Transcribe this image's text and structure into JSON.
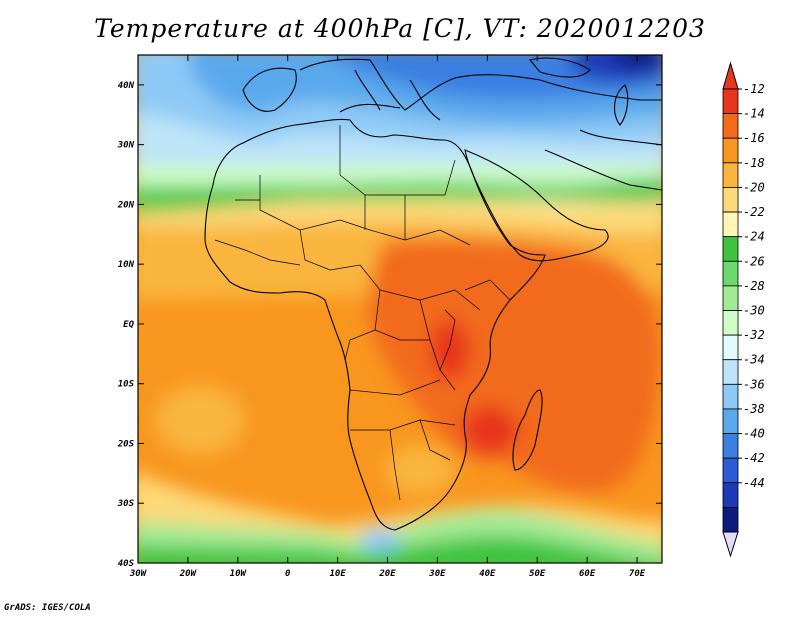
{
  "title": "Temperature at 400hPa [C], VT: 2020012203",
  "credit": "GrADS: IGES/COLA",
  "map": {
    "lon_range": [
      -30,
      75
    ],
    "lat_range": [
      -40,
      45
    ],
    "x_ticks": [
      {
        "value": -30,
        "label": "30W"
      },
      {
        "value": -20,
        "label": "20W"
      },
      {
        "value": -10,
        "label": "10W"
      },
      {
        "value": 0,
        "label": "0"
      },
      {
        "value": 10,
        "label": "10E"
      },
      {
        "value": 20,
        "label": "20E"
      },
      {
        "value": 30,
        "label": "30E"
      },
      {
        "value": 40,
        "label": "40E"
      },
      {
        "value": 50,
        "label": "50E"
      },
      {
        "value": 60,
        "label": "60E"
      },
      {
        "value": 70,
        "label": "70E"
      }
    ],
    "y_ticks": [
      {
        "value": 40,
        "label": "40N"
      },
      {
        "value": 30,
        "label": "30N"
      },
      {
        "value": 20,
        "label": "20N"
      },
      {
        "value": 10,
        "label": "10N"
      },
      {
        "value": 0,
        "label": "EQ"
      },
      {
        "value": -10,
        "label": "10S"
      },
      {
        "value": -20,
        "label": "20S"
      },
      {
        "value": -30,
        "label": "30S"
      },
      {
        "value": -40,
        "label": "40S"
      }
    ]
  },
  "colorbar": {
    "levels": [
      "-12",
      "-14",
      "-16",
      "-18",
      "-20",
      "-22",
      "-24",
      "-26",
      "-28",
      "-30",
      "-32",
      "-34",
      "-36",
      "-38",
      "-40",
      "-42",
      "-44"
    ],
    "colors": [
      "#e8361c",
      "#f26a1a",
      "#f8961e",
      "#f9b53d",
      "#fcd979",
      "#fff6b5",
      "#3ec43f",
      "#6fd86a",
      "#a3ea97",
      "#cffcc7",
      "#e2fbfb",
      "#bde4f8",
      "#8ec9f6",
      "#5aa8ec",
      "#3b7fe1",
      "#2a5cd3",
      "#1d3bb8",
      "#0c1b80"
    ],
    "top_color": "#e8361c",
    "bottom_color": "#e2dcfa"
  }
}
